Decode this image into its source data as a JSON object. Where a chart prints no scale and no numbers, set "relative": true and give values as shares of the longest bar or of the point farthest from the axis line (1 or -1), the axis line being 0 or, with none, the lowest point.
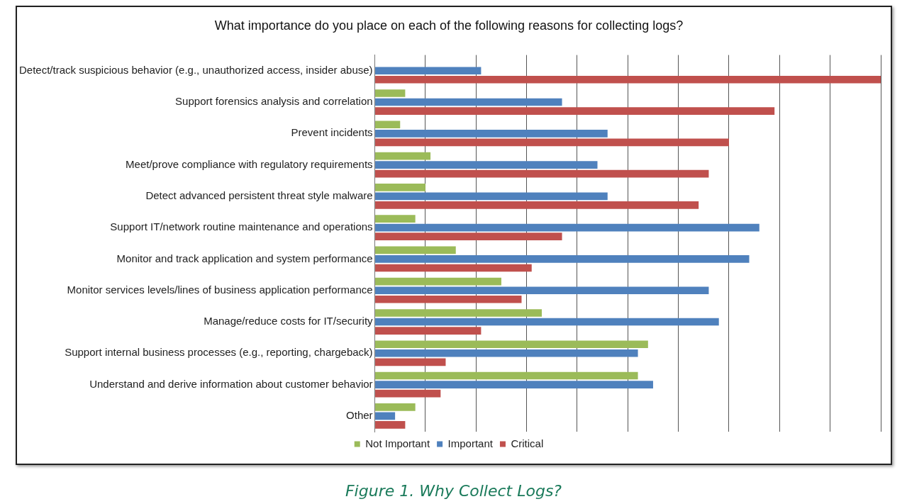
{
  "chart_data": {
    "type": "bar",
    "orientation": "horizontal",
    "relative": true,
    "title": "What importance do you place on each of the following reasons for collecting logs?",
    "categories": [
      "Detect/track suspicious behavior (e.g., unauthorized access, insider abuse)",
      "Support forensics analysis and correlation",
      "Prevent incidents",
      "Meet/prove compliance with regulatory requirements",
      "Detect advanced persistent threat style malware",
      "Support IT/network routine maintenance and operations",
      "Monitor and track application and system performance",
      "Monitor services levels/lines of business application performance",
      "Manage/reduce costs for IT/security",
      "Support internal business processes (e.g., reporting, chargeback)",
      "Understand and derive information about customer behavior",
      "Other"
    ],
    "series": [
      {
        "name": "Not Important",
        "color": "#9bbb59",
        "values": [
          0,
          0.06,
          0.05,
          0.11,
          0.1,
          0.08,
          0.16,
          0.25,
          0.33,
          0.54,
          0.52,
          0.08
        ]
      },
      {
        "name": "Important",
        "color": "#4f81bd",
        "values": [
          0.21,
          0.37,
          0.46,
          0.44,
          0.46,
          0.76,
          0.74,
          0.66,
          0.68,
          0.52,
          0.55,
          0.04
        ]
      },
      {
        "name": "Critical",
        "color": "#c0504d",
        "values": [
          1,
          0.79,
          0.7,
          0.66,
          0.64,
          0.37,
          0.31,
          0.29,
          0.21,
          0.14,
          0.13,
          0.06
        ]
      }
    ],
    "grid": "x",
    "legend": "bottom",
    "annotations": [
      "Figure 1. Why Collect Logs?"
    ]
  }
}
